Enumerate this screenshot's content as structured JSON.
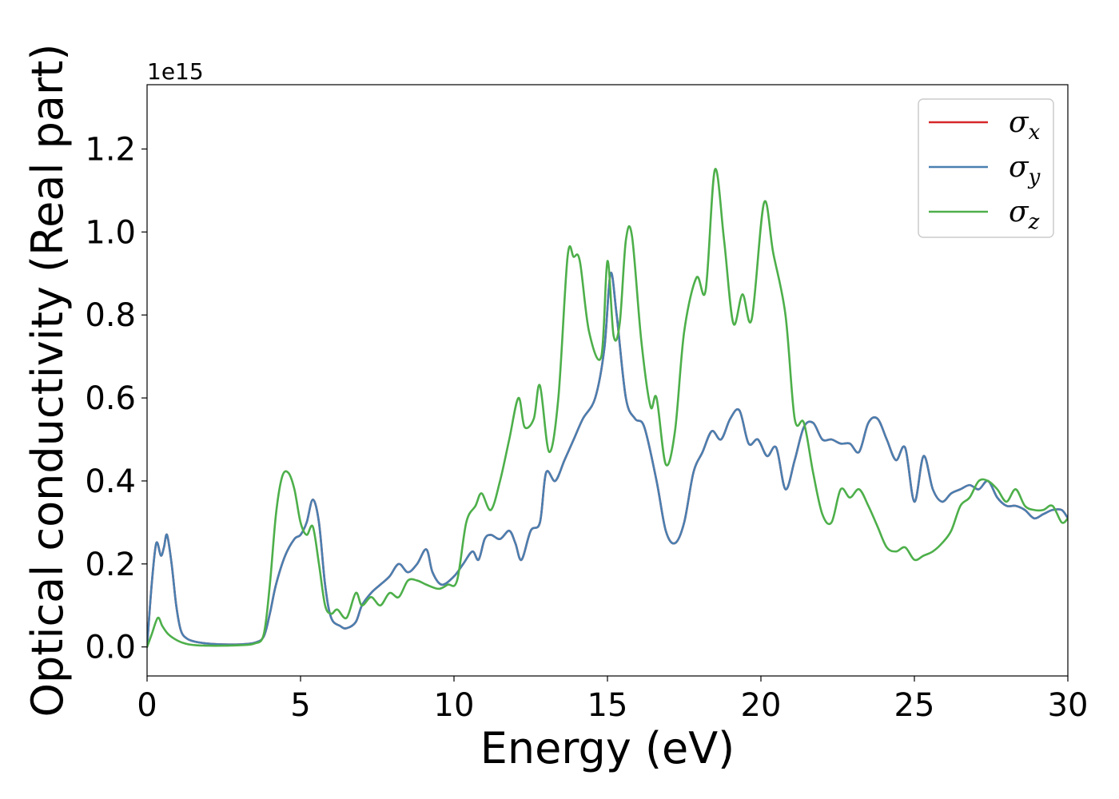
{
  "chart_data": {
    "type": "line",
    "xlabel": "Energy (eV)",
    "ylabel": "Optical conductivity (Real part)",
    "y_offset_label": "1e15",
    "xlim": [
      0,
      30
    ],
    "ylim": [
      -0.07,
      1.355
    ],
    "x_ticks": [
      0,
      5,
      10,
      15,
      20,
      25,
      30
    ],
    "y_ticks": [
      0.0,
      0.2,
      0.4,
      0.6,
      0.8,
      1.0,
      1.2
    ],
    "x_tick_labels": [
      "0",
      "5",
      "10",
      "15",
      "20",
      "25",
      "30"
    ],
    "y_tick_labels": [
      "0.0",
      "0.2",
      "0.4",
      "0.6",
      "0.8",
      "1.0",
      "1.2"
    ],
    "grid": false,
    "legend_position": "top-right",
    "series": [
      {
        "name": "σ",
        "subscript": "x",
        "color": "#d62728",
        "x": [
          0.0,
          0.15,
          0.3,
          0.45,
          0.55,
          0.65,
          0.8,
          0.95,
          1.1,
          1.3,
          1.6,
          2.0,
          2.5,
          3.0,
          3.5,
          3.8,
          4.0,
          4.2,
          4.5,
          4.8,
          5.0,
          5.2,
          5.4,
          5.6,
          5.8,
          6.0,
          6.3,
          6.5,
          6.8,
          7.0,
          7.3,
          7.6,
          7.9,
          8.2,
          8.5,
          8.8,
          9.1,
          9.3,
          9.6,
          10.0,
          10.3,
          10.6,
          10.8,
          11.0,
          11.2,
          11.5,
          11.8,
          12.0,
          12.2,
          12.5,
          12.8,
          13.0,
          13.3,
          13.6,
          13.9,
          14.2,
          14.6,
          14.9,
          15.1,
          15.3,
          15.6,
          15.9,
          16.2,
          16.6,
          16.9,
          17.2,
          17.5,
          17.8,
          18.1,
          18.4,
          18.7,
          19.0,
          19.3,
          19.6,
          19.9,
          20.2,
          20.5,
          20.8,
          21.1,
          21.4,
          21.7,
          22.0,
          22.3,
          22.6,
          22.9,
          23.2,
          23.5,
          23.8,
          24.1,
          24.4,
          24.7,
          25.0,
          25.3,
          25.6,
          25.9,
          26.2,
          26.5,
          26.8,
          27.1,
          27.4,
          27.7,
          28.0,
          28.3,
          28.6,
          28.9,
          29.2,
          29.5,
          29.8,
          30.0
        ],
        "values": [
          0.0,
          0.15,
          0.25,
          0.22,
          0.24,
          0.27,
          0.2,
          0.1,
          0.04,
          0.02,
          0.012,
          0.008,
          0.006,
          0.006,
          0.01,
          0.025,
          0.08,
          0.15,
          0.22,
          0.26,
          0.27,
          0.3,
          0.355,
          0.3,
          0.15,
          0.07,
          0.05,
          0.045,
          0.06,
          0.1,
          0.13,
          0.15,
          0.17,
          0.2,
          0.18,
          0.2,
          0.235,
          0.18,
          0.15,
          0.17,
          0.2,
          0.23,
          0.21,
          0.26,
          0.27,
          0.26,
          0.28,
          0.25,
          0.21,
          0.28,
          0.3,
          0.42,
          0.4,
          0.45,
          0.5,
          0.55,
          0.6,
          0.72,
          0.9,
          0.8,
          0.6,
          0.55,
          0.53,
          0.4,
          0.28,
          0.25,
          0.3,
          0.42,
          0.47,
          0.52,
          0.5,
          0.55,
          0.57,
          0.49,
          0.5,
          0.46,
          0.48,
          0.38,
          0.45,
          0.53,
          0.54,
          0.5,
          0.5,
          0.49,
          0.49,
          0.47,
          0.54,
          0.55,
          0.5,
          0.45,
          0.48,
          0.35,
          0.46,
          0.38,
          0.35,
          0.37,
          0.38,
          0.39,
          0.38,
          0.4,
          0.36,
          0.34,
          0.34,
          0.33,
          0.31,
          0.32,
          0.33,
          0.33,
          0.31
        ]
      },
      {
        "name": "σ",
        "subscript": "y",
        "color": "#4a7fb0",
        "x": [
          0.0,
          0.15,
          0.3,
          0.45,
          0.55,
          0.65,
          0.8,
          0.95,
          1.1,
          1.3,
          1.6,
          2.0,
          2.5,
          3.0,
          3.5,
          3.8,
          4.0,
          4.2,
          4.5,
          4.8,
          5.0,
          5.2,
          5.4,
          5.6,
          5.8,
          6.0,
          6.3,
          6.5,
          6.8,
          7.0,
          7.3,
          7.6,
          7.9,
          8.2,
          8.5,
          8.8,
          9.1,
          9.3,
          9.6,
          10.0,
          10.3,
          10.6,
          10.8,
          11.0,
          11.2,
          11.5,
          11.8,
          12.0,
          12.2,
          12.5,
          12.8,
          13.0,
          13.3,
          13.6,
          13.9,
          14.2,
          14.6,
          14.9,
          15.1,
          15.3,
          15.6,
          15.9,
          16.2,
          16.6,
          16.9,
          17.2,
          17.5,
          17.8,
          18.1,
          18.4,
          18.7,
          19.0,
          19.3,
          19.6,
          19.9,
          20.2,
          20.5,
          20.8,
          21.1,
          21.4,
          21.7,
          22.0,
          22.3,
          22.6,
          22.9,
          23.2,
          23.5,
          23.8,
          24.1,
          24.4,
          24.7,
          25.0,
          25.3,
          25.6,
          25.9,
          26.2,
          26.5,
          26.8,
          27.1,
          27.4,
          27.7,
          28.0,
          28.3,
          28.6,
          28.9,
          29.2,
          29.5,
          29.8,
          30.0
        ],
        "values": [
          0.0,
          0.15,
          0.25,
          0.22,
          0.24,
          0.27,
          0.2,
          0.1,
          0.04,
          0.02,
          0.012,
          0.008,
          0.006,
          0.006,
          0.01,
          0.025,
          0.08,
          0.15,
          0.22,
          0.26,
          0.27,
          0.3,
          0.355,
          0.3,
          0.15,
          0.07,
          0.05,
          0.045,
          0.06,
          0.1,
          0.13,
          0.15,
          0.17,
          0.2,
          0.18,
          0.2,
          0.235,
          0.18,
          0.15,
          0.17,
          0.2,
          0.23,
          0.21,
          0.26,
          0.27,
          0.26,
          0.28,
          0.25,
          0.21,
          0.28,
          0.3,
          0.42,
          0.4,
          0.45,
          0.5,
          0.55,
          0.6,
          0.72,
          0.9,
          0.8,
          0.6,
          0.55,
          0.53,
          0.4,
          0.28,
          0.25,
          0.3,
          0.42,
          0.47,
          0.52,
          0.5,
          0.55,
          0.57,
          0.49,
          0.5,
          0.46,
          0.48,
          0.38,
          0.45,
          0.53,
          0.54,
          0.5,
          0.5,
          0.49,
          0.49,
          0.47,
          0.54,
          0.55,
          0.5,
          0.45,
          0.48,
          0.35,
          0.46,
          0.38,
          0.35,
          0.37,
          0.38,
          0.39,
          0.38,
          0.4,
          0.36,
          0.34,
          0.34,
          0.33,
          0.31,
          0.32,
          0.33,
          0.33,
          0.31
        ]
      },
      {
        "name": "σ",
        "subscript": "z",
        "color": "#4daf4a",
        "x": [
          0.0,
          0.15,
          0.35,
          0.5,
          0.7,
          1.0,
          1.3,
          1.6,
          2.0,
          2.5,
          3.0,
          3.5,
          3.8,
          4.0,
          4.2,
          4.4,
          4.6,
          4.8,
          5.0,
          5.2,
          5.4,
          5.6,
          5.8,
          6.0,
          6.2,
          6.5,
          6.8,
          7.0,
          7.3,
          7.6,
          7.9,
          8.2,
          8.5,
          8.8,
          9.1,
          9.5,
          9.8,
          10.1,
          10.4,
          10.7,
          10.9,
          11.2,
          11.5,
          11.8,
          12.1,
          12.3,
          12.6,
          12.8,
          13.1,
          13.4,
          13.7,
          13.9,
          14.1,
          14.4,
          14.8,
          15.0,
          15.2,
          15.4,
          15.6,
          15.8,
          16.1,
          16.4,
          16.6,
          16.9,
          17.2,
          17.5,
          17.9,
          18.2,
          18.5,
          18.8,
          19.1,
          19.4,
          19.7,
          20.1,
          20.4,
          20.8,
          21.1,
          21.4,
          21.7,
          22.0,
          22.3,
          22.6,
          22.9,
          23.2,
          23.5,
          23.8,
          24.1,
          24.4,
          24.7,
          25.0,
          25.3,
          25.6,
          25.9,
          26.2,
          26.5,
          26.8,
          27.1,
          27.4,
          27.7,
          28.0,
          28.3,
          28.6,
          28.9,
          29.2,
          29.5,
          29.8,
          30.0
        ],
        "values": [
          0.0,
          0.03,
          0.07,
          0.05,
          0.03,
          0.015,
          0.007,
          0.004,
          0.003,
          0.003,
          0.004,
          0.008,
          0.03,
          0.15,
          0.32,
          0.41,
          0.42,
          0.38,
          0.3,
          0.27,
          0.29,
          0.2,
          0.1,
          0.08,
          0.09,
          0.07,
          0.13,
          0.1,
          0.12,
          0.1,
          0.13,
          0.12,
          0.16,
          0.16,
          0.15,
          0.14,
          0.15,
          0.16,
          0.3,
          0.34,
          0.37,
          0.33,
          0.4,
          0.5,
          0.6,
          0.53,
          0.55,
          0.63,
          0.47,
          0.6,
          0.94,
          0.94,
          0.93,
          0.76,
          0.7,
          0.93,
          0.75,
          0.78,
          0.98,
          0.99,
          0.74,
          0.58,
          0.6,
          0.44,
          0.52,
          0.76,
          0.89,
          0.86,
          1.15,
          0.98,
          0.78,
          0.85,
          0.79,
          1.07,
          0.95,
          0.8,
          0.55,
          0.54,
          0.42,
          0.32,
          0.3,
          0.38,
          0.36,
          0.38,
          0.34,
          0.29,
          0.24,
          0.23,
          0.24,
          0.21,
          0.22,
          0.23,
          0.25,
          0.28,
          0.34,
          0.36,
          0.4,
          0.4,
          0.38,
          0.35,
          0.38,
          0.34,
          0.33,
          0.33,
          0.34,
          0.3,
          0.31
        ]
      }
    ]
  }
}
